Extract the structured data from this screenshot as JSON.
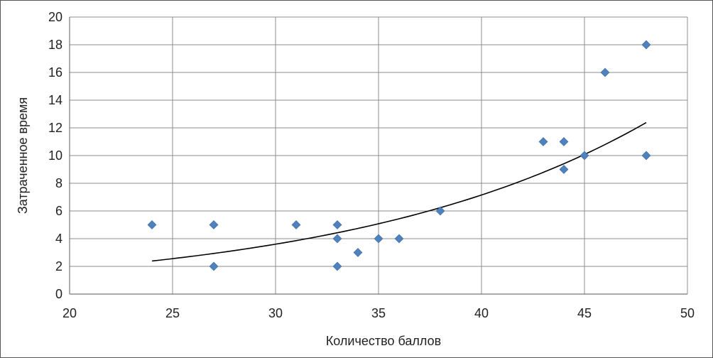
{
  "chart_data": {
    "type": "scatter",
    "title": "",
    "xlabel": "Количество баллов",
    "ylabel": "Затраченное время",
    "xlim": [
      20,
      50
    ],
    "ylim": [
      0,
      20
    ],
    "x_ticks": [
      20,
      25,
      30,
      35,
      40,
      45,
      50
    ],
    "y_ticks": [
      0,
      2,
      4,
      6,
      8,
      10,
      12,
      14,
      16,
      18,
      20
    ],
    "grid": true,
    "legend": "none",
    "marker_color": "#4F81BD",
    "trendline": {
      "type": "exponential",
      "x_range": [
        24,
        48
      ],
      "a": 0.46,
      "b": 0.0686,
      "color": "#000000"
    },
    "points": [
      {
        "x": 24,
        "y": 5
      },
      {
        "x": 27,
        "y": 5
      },
      {
        "x": 27,
        "y": 2
      },
      {
        "x": 31,
        "y": 5
      },
      {
        "x": 33,
        "y": 5
      },
      {
        "x": 33,
        "y": 4
      },
      {
        "x": 33,
        "y": 2
      },
      {
        "x": 34,
        "y": 3
      },
      {
        "x": 35,
        "y": 4
      },
      {
        "x": 36,
        "y": 4
      },
      {
        "x": 38,
        "y": 6
      },
      {
        "x": 43,
        "y": 11
      },
      {
        "x": 44,
        "y": 11
      },
      {
        "x": 44,
        "y": 9
      },
      {
        "x": 45,
        "y": 10
      },
      {
        "x": 46,
        "y": 16
      },
      {
        "x": 48,
        "y": 18
      },
      {
        "x": 48,
        "y": 10
      }
    ]
  }
}
